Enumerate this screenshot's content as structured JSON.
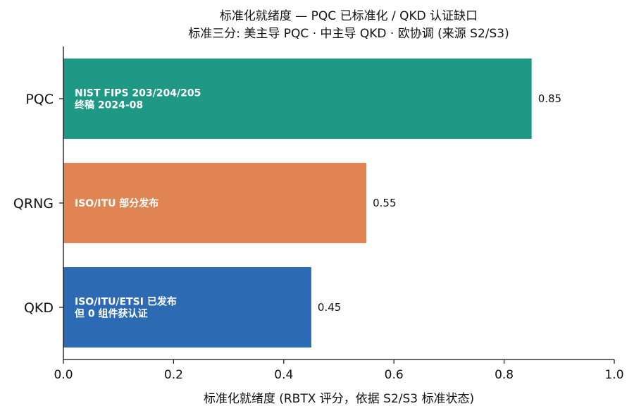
{
  "chart_data": {
    "type": "bar",
    "orientation": "horizontal",
    "title": "标准化就绪度 — PQC 已标准化 / QKD 认证缺口",
    "subtitle": "标准三分: 美主导 PQC · 中主导 QKD · 欧协调 (来源 S2/S3)",
    "xlabel": "标准化就绪度 (RBTX 评分，依据 S2/S3 标准状态)",
    "ylabel": "",
    "xlim": [
      0,
      1.0
    ],
    "xticks": [
      "0.0",
      "0.2",
      "0.4",
      "0.6",
      "0.8",
      "1.0"
    ],
    "grid": false,
    "categories": [
      "PQC",
      "QRNG",
      "QKD"
    ],
    "values": [
      0.85,
      0.55,
      0.45
    ],
    "value_labels": [
      "0.85",
      "0.55",
      "0.45"
    ],
    "bar_notes": [
      [
        "NIST FIPS 203/204/205",
        "终稿 2024-08"
      ],
      [
        "ISO/ITU 部分发布"
      ],
      [
        "ISO/ITU/ETSI 已发布",
        "但 0 组件获认证"
      ]
    ],
    "colors": [
      "#1f9985",
      "#e08552",
      "#2c6bb3"
    ]
  }
}
